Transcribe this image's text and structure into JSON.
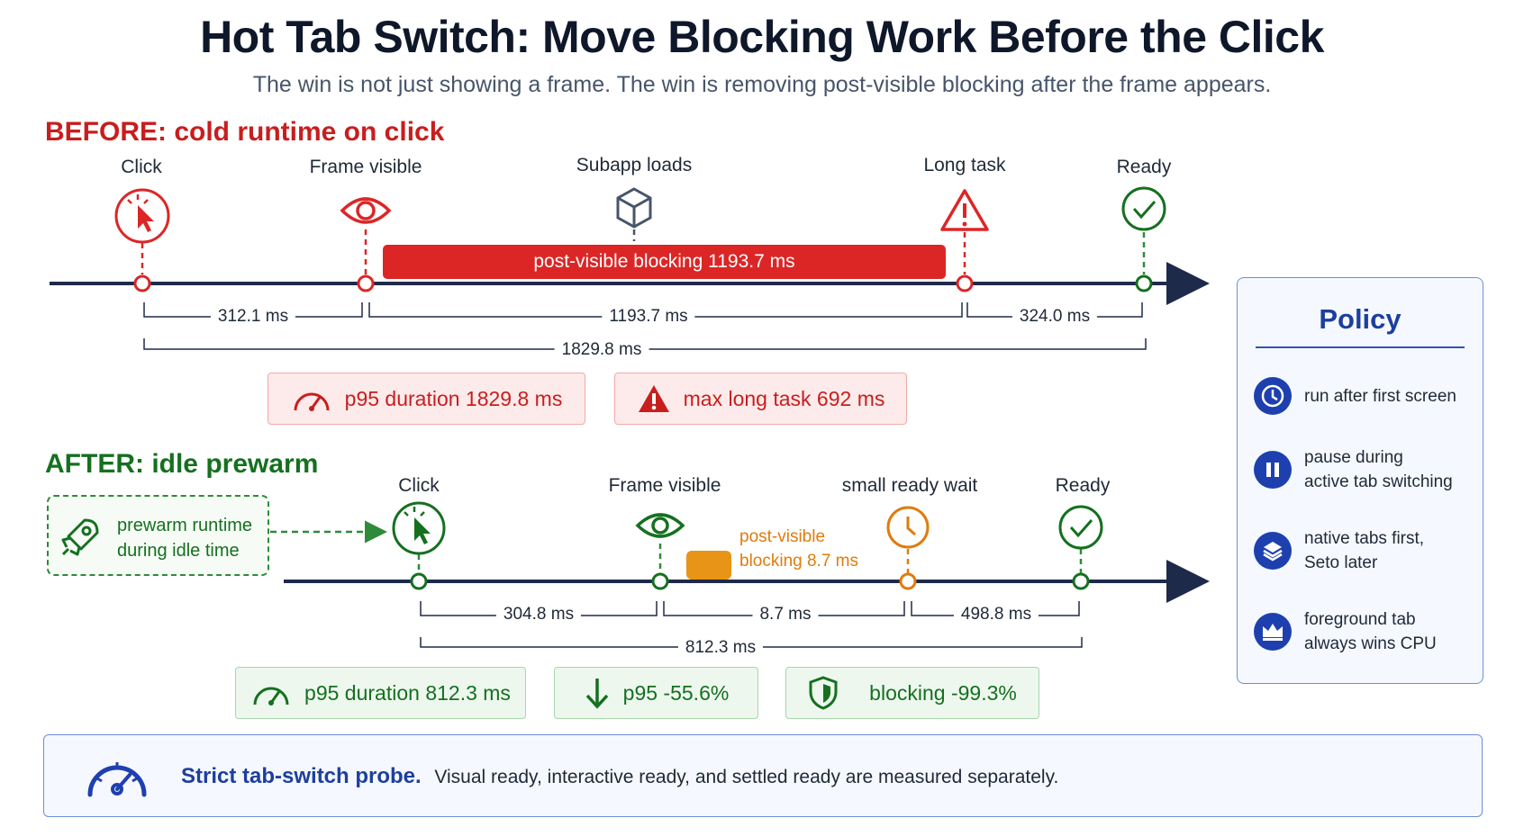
{
  "header": {
    "title": "Hot Tab Switch: Move Blocking Work Before the Click",
    "subtitle": "The win is not just showing a frame. The win is removing post-visible blocking after the frame appears."
  },
  "before": {
    "heading": "BEFORE: cold runtime on click",
    "events": [
      "Click",
      "Frame visible",
      "Subapp loads",
      "Long task",
      "Ready"
    ],
    "blocking_label": "post-visible blocking 1193.7 ms",
    "segments": [
      "312.1 ms",
      "1193.7 ms",
      "324.0 ms"
    ],
    "total": "1829.8 ms",
    "metrics": [
      "p95 duration 1829.8 ms",
      "max long task 692 ms"
    ]
  },
  "after": {
    "heading": "AFTER: idle prewarm",
    "prewarm": [
      "prewarm runtime",
      "during idle time"
    ],
    "events": [
      "Click",
      "Frame visible",
      "small ready wait",
      "Ready"
    ],
    "blocking_label": [
      "post-visible",
      "blocking 8.7 ms"
    ],
    "segments": [
      "304.8 ms",
      "8.7 ms",
      "498.8 ms"
    ],
    "total": "812.3 ms",
    "metrics": [
      "p95 duration 812.3 ms",
      "p95 -55.6%",
      "blocking -99.3%"
    ]
  },
  "policy": {
    "title": "Policy",
    "items": [
      {
        "icon": "clock-icon",
        "lines": [
          "run after first screen"
        ]
      },
      {
        "icon": "pause-icon",
        "lines": [
          "pause during",
          "active tab switching"
        ]
      },
      {
        "icon": "layers-icon",
        "lines": [
          "native tabs first,",
          "Seto later"
        ]
      },
      {
        "icon": "crown-icon",
        "lines": [
          "foreground tab",
          "always wins CPU"
        ]
      }
    ]
  },
  "probe": {
    "bold": "Strict tab-switch probe.",
    "text": "Visual ready, interactive ready, and settled ready are measured separately."
  },
  "colors": {
    "red": "#dc2626",
    "green": "#15701f",
    "orange": "#e07b0c",
    "navy": "#1e2a4a",
    "blue": "#1e40af"
  }
}
